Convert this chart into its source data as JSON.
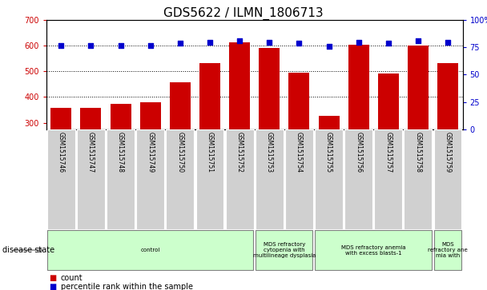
{
  "title": "GDS5622 / ILMN_1806713",
  "samples": [
    "GSM1515746",
    "GSM1515747",
    "GSM1515748",
    "GSM1515749",
    "GSM1515750",
    "GSM1515751",
    "GSM1515752",
    "GSM1515753",
    "GSM1515754",
    "GSM1515755",
    "GSM1515756",
    "GSM1515757",
    "GSM1515758",
    "GSM1515759"
  ],
  "counts": [
    358,
    358,
    375,
    381,
    458,
    533,
    614,
    591,
    496,
    328,
    605,
    491,
    601,
    533
  ],
  "percentile_ranks": [
    77,
    77,
    77,
    77,
    79,
    80,
    81,
    80,
    79,
    76,
    80,
    79,
    81,
    80
  ],
  "ylim_left": [
    275,
    700
  ],
  "ylim_right": [
    0,
    100
  ],
  "yticks_left": [
    300,
    400,
    500,
    600,
    700
  ],
  "yticks_right": [
    0,
    25,
    50,
    75,
    100
  ],
  "bar_color": "#cc0000",
  "dot_color": "#0000cc",
  "disease_groups": [
    {
      "label": "control",
      "start": 0,
      "end": 7,
      "color": "#ccffcc"
    },
    {
      "label": "MDS refractory\ncytopenia with\nmultilineage dysplasia",
      "start": 7,
      "end": 9,
      "color": "#ccffcc"
    },
    {
      "label": "MDS refractory anemia\nwith excess blasts-1",
      "start": 9,
      "end": 13,
      "color": "#ccffcc"
    },
    {
      "label": "MDS\nrefractory ane\nmia with",
      "start": 13,
      "end": 14,
      "color": "#ccffcc"
    }
  ],
  "legend_count_label": "count",
  "legend_pct_label": "percentile rank within the sample",
  "title_fontsize": 11,
  "tick_fontsize": 7,
  "label_fontsize": 7,
  "bar_width": 0.7,
  "figsize": [
    6.08,
    3.63
  ],
  "dpi": 100
}
